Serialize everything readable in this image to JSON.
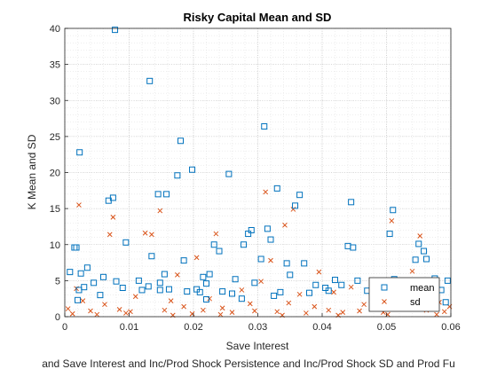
{
  "chart_data": {
    "type": "scatter",
    "title": "Risky Capital Mean and SD",
    "xlabel": "Save Interest",
    "ylabel": "K Mean and SD",
    "subtitle_clipped": "and Save Interest and Inc/Prod Shock Persistence and Inc/Prod Shock SD and Prod Fu",
    "xlim": [
      0,
      0.06
    ],
    "ylim": [
      0,
      40
    ],
    "x_ticks": [
      "0",
      "0.01",
      "0.02",
      "0.03",
      "0.04",
      "0.05",
      "0.06"
    ],
    "y_ticks": [
      "0",
      "5",
      "10",
      "15",
      "20",
      "25",
      "30",
      "35",
      "40"
    ],
    "grid": true,
    "legend_position": "bottom-right",
    "colors": {
      "mean": "#0072BD",
      "sd": "#D95319"
    },
    "series": [
      {
        "name": "mean",
        "marker": "square",
        "points": [
          [
            0.0008,
            6.2
          ],
          [
            0.0015,
            9.6
          ],
          [
            0.0018,
            9.6
          ],
          [
            0.002,
            2.3
          ],
          [
            0.0022,
            3.7
          ],
          [
            0.0023,
            22.8
          ],
          [
            0.0025,
            6.0
          ],
          [
            0.003,
            4.1
          ],
          [
            0.0035,
            6.8
          ],
          [
            0.0045,
            4.7
          ],
          [
            0.0055,
            3.0
          ],
          [
            0.006,
            5.5
          ],
          [
            0.0068,
            16.1
          ],
          [
            0.0075,
            16.5
          ],
          [
            0.0078,
            39.8
          ],
          [
            0.008,
            4.9
          ],
          [
            0.009,
            4.0
          ],
          [
            0.0095,
            10.3
          ],
          [
            0.0115,
            5.0
          ],
          [
            0.012,
            3.7
          ],
          [
            0.013,
            4.2
          ],
          [
            0.0132,
            32.7
          ],
          [
            0.0135,
            8.4
          ],
          [
            0.0145,
            17.0
          ],
          [
            0.0148,
            3.7
          ],
          [
            0.0155,
            5.9
          ],
          [
            0.0158,
            17.0
          ],
          [
            0.0162,
            3.8
          ],
          [
            0.0175,
            19.6
          ],
          [
            0.018,
            24.4
          ],
          [
            0.0185,
            7.8
          ],
          [
            0.019,
            3.5
          ],
          [
            0.0198,
            20.4
          ],
          [
            0.0205,
            3.8
          ],
          [
            0.021,
            3.4
          ],
          [
            0.0215,
            5.5
          ],
          [
            0.022,
            4.6
          ],
          [
            0.0225,
            5.9
          ],
          [
            0.0232,
            10.0
          ],
          [
            0.024,
            9.1
          ],
          [
            0.0245,
            3.5
          ],
          [
            0.0255,
            19.8
          ],
          [
            0.026,
            3.2
          ],
          [
            0.0265,
            5.2
          ],
          [
            0.0278,
            10.0
          ],
          [
            0.0285,
            11.5
          ],
          [
            0.029,
            12.0
          ],
          [
            0.0295,
            4.7
          ],
          [
            0.0305,
            8.0
          ],
          [
            0.031,
            26.4
          ],
          [
            0.0315,
            12.2
          ],
          [
            0.032,
            10.7
          ],
          [
            0.0325,
            2.9
          ],
          [
            0.033,
            17.8
          ],
          [
            0.0335,
            3.4
          ],
          [
            0.0345,
            7.4
          ],
          [
            0.035,
            5.8
          ],
          [
            0.0358,
            15.4
          ],
          [
            0.0365,
            16.9
          ],
          [
            0.0372,
            7.4
          ],
          [
            0.038,
            3.3
          ],
          [
            0.039,
            4.4
          ],
          [
            0.0405,
            4.0
          ],
          [
            0.042,
            5.1
          ],
          [
            0.043,
            4.4
          ],
          [
            0.044,
            9.8
          ],
          [
            0.0445,
            15.9
          ],
          [
            0.0448,
            9.6
          ],
          [
            0.0455,
            5.0
          ],
          [
            0.047,
            3.6
          ],
          [
            0.0478,
            2.0
          ],
          [
            0.049,
            2.4
          ],
          [
            0.0505,
            11.5
          ],
          [
            0.051,
            14.8
          ],
          [
            0.0512,
            5.2
          ],
          [
            0.0528,
            3.6
          ],
          [
            0.0545,
            7.9
          ],
          [
            0.055,
            10.1
          ],
          [
            0.0558,
            9.1
          ],
          [
            0.0562,
            8.0
          ],
          [
            0.0575,
            5.3
          ],
          [
            0.0585,
            3.7
          ],
          [
            0.0592,
            2.0
          ],
          [
            0.0595,
            5.0
          ],
          [
            0.0148,
            4.7
          ],
          [
            0.022,
            2.4
          ],
          [
            0.041,
            3.6
          ],
          [
            0.0275,
            2.5
          ]
        ]
      },
      {
        "name": "sd",
        "marker": "x",
        "points": [
          [
            0.0005,
            1.1
          ],
          [
            0.0012,
            0.4
          ],
          [
            0.0018,
            3.9
          ],
          [
            0.0022,
            15.5
          ],
          [
            0.0028,
            2.2
          ],
          [
            0.004,
            0.8
          ],
          [
            0.005,
            0.3
          ],
          [
            0.0062,
            1.7
          ],
          [
            0.007,
            11.4
          ],
          [
            0.0075,
            13.8
          ],
          [
            0.0085,
            1.0
          ],
          [
            0.0095,
            0.5
          ],
          [
            0.011,
            2.8
          ],
          [
            0.0125,
            11.6
          ],
          [
            0.0135,
            11.4
          ],
          [
            0.0148,
            14.7
          ],
          [
            0.0155,
            0.9
          ],
          [
            0.0165,
            2.2
          ],
          [
            0.0175,
            5.8
          ],
          [
            0.0185,
            1.4
          ],
          [
            0.0198,
            0.4
          ],
          [
            0.0205,
            8.2
          ],
          [
            0.0215,
            0.9
          ],
          [
            0.0225,
            2.5
          ],
          [
            0.0235,
            11.5
          ],
          [
            0.0245,
            1.2
          ],
          [
            0.026,
            0.6
          ],
          [
            0.0275,
            3.7
          ],
          [
            0.0288,
            1.8
          ],
          [
            0.0295,
            0.8
          ],
          [
            0.0305,
            4.9
          ],
          [
            0.0312,
            17.3
          ],
          [
            0.032,
            7.8
          ],
          [
            0.033,
            0.7
          ],
          [
            0.0342,
            12.7
          ],
          [
            0.0348,
            1.9
          ],
          [
            0.0355,
            14.9
          ],
          [
            0.0365,
            3.1
          ],
          [
            0.0375,
            0.5
          ],
          [
            0.0388,
            1.4
          ],
          [
            0.0395,
            6.2
          ],
          [
            0.041,
            0.9
          ],
          [
            0.0418,
            3.4
          ],
          [
            0.0432,
            0.6
          ],
          [
            0.0445,
            4.1
          ],
          [
            0.0458,
            0.8
          ],
          [
            0.0465,
            1.7
          ],
          [
            0.048,
            3.9
          ],
          [
            0.0495,
            0.6
          ],
          [
            0.0508,
            13.3
          ],
          [
            0.0518,
            2.6
          ],
          [
            0.0528,
            1.1
          ],
          [
            0.054,
            6.3
          ],
          [
            0.0552,
            11.2
          ],
          [
            0.0562,
            0.9
          ],
          [
            0.0572,
            4.4
          ],
          [
            0.0582,
            2.0
          ],
          [
            0.059,
            0.7
          ],
          [
            0.0598,
            1.4
          ],
          [
            0.0102,
            0.7
          ],
          [
            0.0168,
            0.2
          ],
          [
            0.0242,
            0.3
          ],
          [
            0.0338,
            0.2
          ],
          [
            0.0425,
            0.2
          ],
          [
            0.0502,
            0.3
          ],
          [
            0.0578,
            0.3
          ]
        ]
      }
    ]
  }
}
